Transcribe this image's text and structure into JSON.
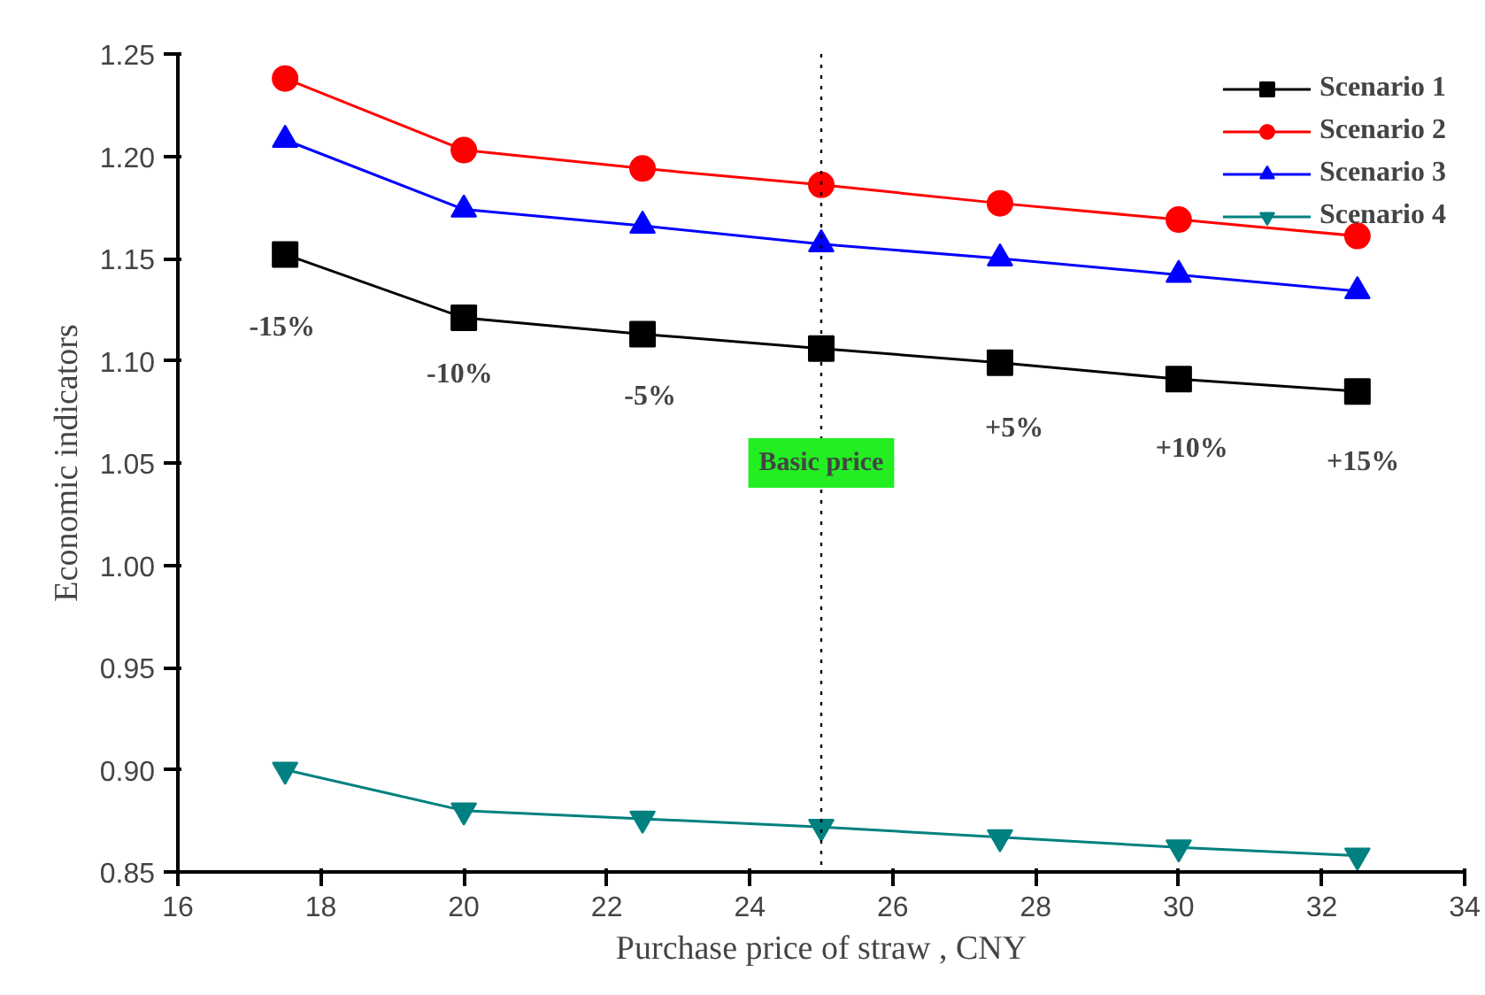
{
  "chart_data": {
    "type": "line",
    "xlabel": "Purchase price of straw , CNY",
    "ylabel": "Economic indicators",
    "x": [
      17.5,
      20,
      22.5,
      25,
      27.5,
      30,
      32.5
    ],
    "series": [
      {
        "name": "Scenario 1",
        "color": "#000000",
        "marker": "square",
        "values": [
          1.152,
          1.121,
          1.113,
          1.106,
          1.099,
          1.091,
          1.085
        ]
      },
      {
        "name": "Scenario 2",
        "color": "#ff0000",
        "marker": "circle",
        "values": [
          1.238,
          1.203,
          1.194,
          1.186,
          1.177,
          1.169,
          1.161
        ]
      },
      {
        "name": "Scenario 3",
        "color": "#0000ff",
        "marker": "triangle",
        "values": [
          1.208,
          1.174,
          1.166,
          1.157,
          1.15,
          1.142,
          1.134
        ]
      },
      {
        "name": "Scenario 4",
        "color": "#008080",
        "marker": "triangle",
        "values": [
          0.9,
          0.88,
          0.876,
          0.872,
          0.867,
          0.862,
          0.858
        ]
      }
    ],
    "xlim": [
      16,
      34
    ],
    "xticks": [
      16,
      18,
      20,
      22,
      24,
      26,
      28,
      30,
      32,
      34
    ],
    "ylim": [
      0.85,
      1.25
    ],
    "yticks": [
      {
        "value": 0.85,
        "label": "0.85"
      },
      {
        "value": 0.9,
        "label": "0.90"
      },
      {
        "value": 0.95,
        "label": "0.95"
      },
      {
        "value": 1.0,
        "label": "1.00"
      },
      {
        "value": 1.05,
        "label": "1.05"
      },
      {
        "value": 1.1,
        "label": "1.10"
      },
      {
        "value": 1.15,
        "label": "1.15"
      },
      {
        "value": 1.2,
        "label": "1.20"
      },
      {
        "value": 1.25,
        "label": "1.25"
      }
    ],
    "ref_lines": [
      {
        "axis": "x",
        "value": 25,
        "label": "Basic price",
        "color": "#000000",
        "line_style": "dotted"
      }
    ],
    "annotations": [
      "-15%",
      "-10%",
      "-5%",
      "+5%",
      "+10%",
      "+15%"
    ],
    "legend": "top right",
    "grid": false,
    "line_style": "solid"
  }
}
